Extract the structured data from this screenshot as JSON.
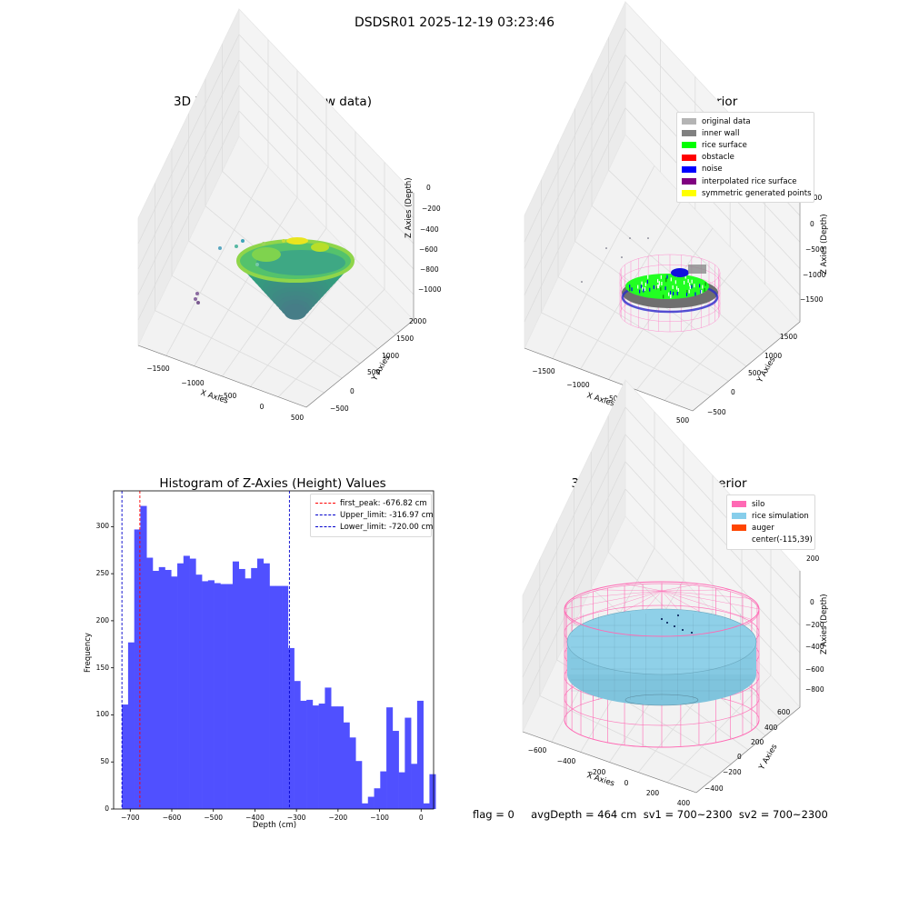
{
  "figure": {
    "suptitle": "DSDSR01 2025-12-19 03:23:46",
    "footer": "flag = 0     avgDepth = 464 cm  sv1 = 700~2300  sv2 = 700~2300"
  },
  "colors": {
    "hist_bar": "#5050ff",
    "first_peak": "#ff0000",
    "limits": "#0000cc",
    "silo": "#ff69b4",
    "rice_simulation": "#87ceeb",
    "auger": "#ff4500",
    "original_data": "#b4b4b4",
    "inner_wall": "#808080",
    "rice_surface": "#00ff00",
    "obstacle": "#ff0000",
    "noise": "#0000ff",
    "interpolated_rice_surface": "#800080",
    "symmetric_generated_points": "#ffff00"
  },
  "plot_raw": {
    "title": "3D Plot of Silo Interior(row data)",
    "xlabel": "X Axies",
    "ylabel": "Y Axies",
    "zlabel": "Z Axies (Depth)",
    "x_ticks": [
      "−1500",
      "−1000",
      "−500",
      "0",
      "500"
    ],
    "y_ticks": [
      "−500",
      "0",
      "500",
      "1000",
      "1500",
      "2000"
    ],
    "z_ticks": [
      "0",
      "−200",
      "−400",
      "−600",
      "−800",
      "−1000"
    ]
  },
  "plot_classify": {
    "title": "3D classify of Silo Interior",
    "xlabel": "X Axies",
    "ylabel": "Y Axies",
    "zlabel": "Z Axies (Depth)",
    "x_ticks": [
      "−1500",
      "−1000",
      "−500",
      "0",
      "500"
    ],
    "y_ticks": [
      "−500",
      "0",
      "500",
      "1000",
      "1500"
    ],
    "z_ticks": [
      "500",
      "0",
      "−500",
      "−1000",
      "−1500"
    ],
    "legend": [
      {
        "label": "original data",
        "color": "#b4b4b4"
      },
      {
        "label": "inner wall",
        "color": "#808080"
      },
      {
        "label": "rice surface",
        "color": "#00ff00"
      },
      {
        "label": "obstacle",
        "color": "#ff0000"
      },
      {
        "label": "noise",
        "color": "#0000ff"
      },
      {
        "label": "interpolated rice surface",
        "color": "#800080"
      },
      {
        "label": "symmetric generated points",
        "color": "#ffff00"
      }
    ]
  },
  "plot_sim": {
    "title": "3D simulation of Silo Interior",
    "xlabel": "X Axies",
    "ylabel": "Y Axies",
    "zlabel": "Z Axies (Depth)",
    "x_ticks": [
      "−600",
      "−400",
      "−200",
      "0",
      "200",
      "400"
    ],
    "y_ticks": [
      "−400",
      "−200",
      "0",
      "200",
      "400",
      "600"
    ],
    "z_ticks": [
      "200",
      "0",
      "−200",
      "−400",
      "−600",
      "−800"
    ],
    "legend": [
      {
        "label": "silo",
        "color": "#ff69b4",
        "kind": "patch"
      },
      {
        "label": "rice simulation",
        "color": "#87ceeb",
        "kind": "patch"
      },
      {
        "label": "auger",
        "color": "#ff4500",
        "kind": "patch"
      },
      {
        "label": "center(-115,39)",
        "color": "",
        "kind": "none"
      }
    ]
  },
  "chart_data": {
    "type": "bar",
    "title": "Histogram of Z-Axies (Height) Values",
    "xlabel": "Depth (cm)",
    "ylabel": "Frequency",
    "xlim": [
      -740,
      30
    ],
    "ylim": [
      0,
      338
    ],
    "x_ticks": [
      -700,
      -600,
      -500,
      -400,
      -300,
      -200,
      -100,
      0
    ],
    "x_tick_labels": [
      "−700",
      "−600",
      "−500",
      "−400",
      "−300",
      "−200",
      "−100",
      "0"
    ],
    "y_ticks": [
      0,
      50,
      100,
      150,
      200,
      250,
      300
    ],
    "y_tick_labels": [
      "0",
      "50",
      "100",
      "150",
      "200",
      "250",
      "300"
    ],
    "bin_start": -720,
    "bin_width": 14.8,
    "values": [
      111,
      177,
      297,
      322,
      267,
      253,
      257,
      254,
      247,
      261,
      269,
      266,
      249,
      242,
      243,
      240,
      239,
      239,
      263,
      255,
      245,
      256,
      266,
      261,
      237,
      237,
      237,
      171,
      136,
      115,
      116,
      110,
      112,
      129,
      109,
      109,
      92,
      76,
      51,
      6,
      13,
      22,
      40,
      108,
      83,
      39,
      97,
      48,
      115,
      6,
      37
    ],
    "lines": [
      {
        "label": "first_peak: -676.82 cm",
        "x": -676.82,
        "color": "#ff0000"
      },
      {
        "label": "Upper_limit: -316.97 cm",
        "x": -316.97,
        "color": "#0000cc"
      },
      {
        "label": "Lower_limit: -720.00 cm",
        "x": -720.0,
        "color": "#0000cc"
      }
    ]
  }
}
